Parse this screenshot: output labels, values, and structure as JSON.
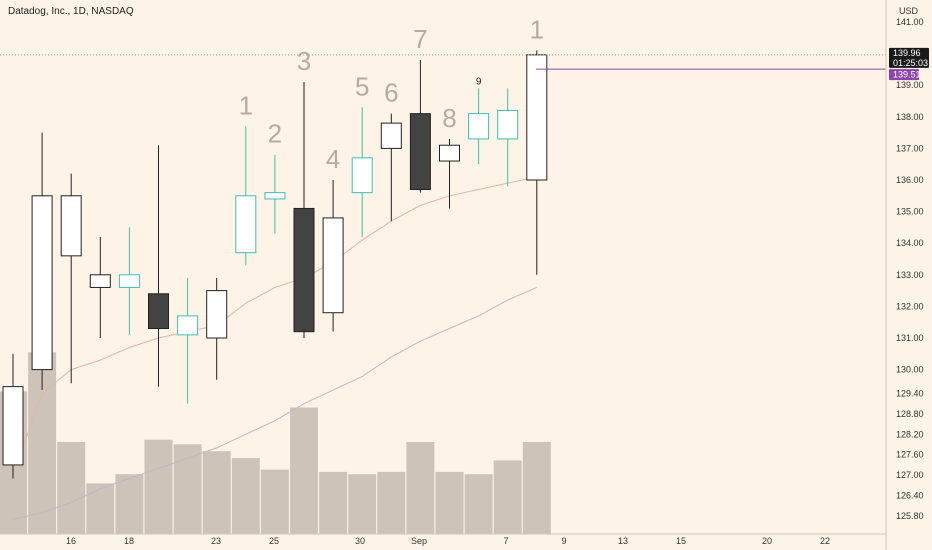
{
  "header": {
    "title": "Datadog, Inc., 1D, NASDAQ"
  },
  "price_scale": {
    "currency": "USD",
    "current_price": "139.96",
    "countdown": "01:25:03",
    "line_price": "139.51"
  },
  "colors": {
    "background": "#fdf3e7",
    "up_candle": "#ffffff",
    "down_candle": "#434343",
    "teal_candle": "#3fbfb4",
    "volume": "#c4bab0",
    "line_marker": "#8e44ad",
    "ma_fast": "#e9b3a6",
    "ma_slow": "#c9b3c9"
  },
  "chart_data": {
    "type": "candlestick",
    "title": "Datadog, Inc., 1D, NASDAQ",
    "y_ticks": [
      141.0,
      140.0,
      139.0,
      138.0,
      137.0,
      136.0,
      135.0,
      134.0,
      133.0,
      132.0,
      131.0,
      130.0,
      129.4,
      128.8,
      128.2,
      127.6,
      127.0,
      126.4,
      125.8
    ],
    "x_ticks": [
      "16",
      "18",
      "23",
      "25",
      "30",
      "Sep",
      "7",
      "9",
      "13",
      "15",
      "20",
      "22"
    ],
    "candles": [
      {
        "open": 127.3,
        "high": 130.5,
        "low": 126.9,
        "close": 129.6,
        "style": "up"
      },
      {
        "open": 130.0,
        "high": 137.5,
        "low": 129.5,
        "close": 135.5,
        "style": "up"
      },
      {
        "open": 135.5,
        "high": 136.2,
        "low": 129.7,
        "close": 133.6,
        "style": "up"
      },
      {
        "open": 132.6,
        "high": 134.2,
        "low": 131.0,
        "close": 133.0,
        "style": "up"
      },
      {
        "open": 132.6,
        "high": 134.5,
        "low": 131.1,
        "close": 133.0,
        "style": "teal"
      },
      {
        "open": 132.4,
        "high": 137.1,
        "low": 129.6,
        "close": 131.3,
        "style": "down"
      },
      {
        "open": 131.1,
        "high": 132.9,
        "low": 129.1,
        "close": 131.7,
        "style": "teal"
      },
      {
        "open": 131.0,
        "high": 132.9,
        "low": 129.8,
        "close": 132.5,
        "style": "up"
      },
      {
        "open": 133.7,
        "high": 137.7,
        "low": 133.3,
        "close": 135.5,
        "style": "teal"
      },
      {
        "open": 135.4,
        "high": 136.8,
        "low": 134.3,
        "close": 135.6,
        "style": "teal"
      },
      {
        "open": 135.1,
        "high": 139.1,
        "low": 131.0,
        "close": 131.2,
        "style": "down"
      },
      {
        "open": 131.8,
        "high": 136.0,
        "low": 131.2,
        "close": 134.8,
        "style": "up"
      },
      {
        "open": 135.6,
        "high": 138.3,
        "low": 134.2,
        "close": 136.7,
        "style": "teal"
      },
      {
        "open": 137.0,
        "high": 138.1,
        "low": 134.7,
        "close": 137.8,
        "style": "up"
      },
      {
        "open": 138.1,
        "high": 139.8,
        "low": 135.6,
        "close": 135.7,
        "style": "down"
      },
      {
        "open": 136.6,
        "high": 137.3,
        "low": 135.1,
        "close": 137.1,
        "style": "up"
      },
      {
        "open": 137.3,
        "high": 138.9,
        "low": 136.5,
        "close": 138.1,
        "style": "teal"
      },
      {
        "open": 137.3,
        "high": 138.9,
        "low": 135.8,
        "close": 138.2,
        "style": "teal"
      },
      {
        "open": 136.0,
        "high": 140.1,
        "low": 133.0,
        "close": 139.96,
        "style": "up"
      }
    ],
    "volume": [
      0.62,
      0.79,
      0.4,
      0.22,
      0.26,
      0.41,
      0.39,
      0.36,
      0.33,
      0.28,
      0.55,
      0.27,
      0.26,
      0.27,
      0.4,
      0.27,
      0.26,
      0.32,
      0.4
    ],
    "ma_fast": [
      127.0,
      129.4,
      130.0,
      130.3,
      130.7,
      131.0,
      131.2,
      131.4,
      132.1,
      132.6,
      132.9,
      133.4,
      134.1,
      134.7,
      135.2,
      135.5,
      135.7,
      135.9,
      136.1
    ],
    "ma_slow": [
      125.7,
      125.9,
      126.2,
      126.6,
      126.9,
      127.2,
      127.5,
      127.8,
      128.2,
      128.6,
      129.1,
      129.5,
      129.9,
      130.4,
      130.9,
      131.3,
      131.7,
      132.2,
      132.6
    ],
    "sequence_labels": [
      {
        "text": "1",
        "index": 8
      },
      {
        "text": "2",
        "index": 9
      },
      {
        "text": "3",
        "index": 10
      },
      {
        "text": "4",
        "index": 11
      },
      {
        "text": "5",
        "index": 12
      },
      {
        "text": "6",
        "index": 13
      },
      {
        "text": "7",
        "index": 14
      },
      {
        "text": "8",
        "index": 15
      },
      {
        "text": "9",
        "index": 16
      },
      {
        "text": "1",
        "index": 18
      }
    ],
    "horizontal_line": 139.51
  }
}
